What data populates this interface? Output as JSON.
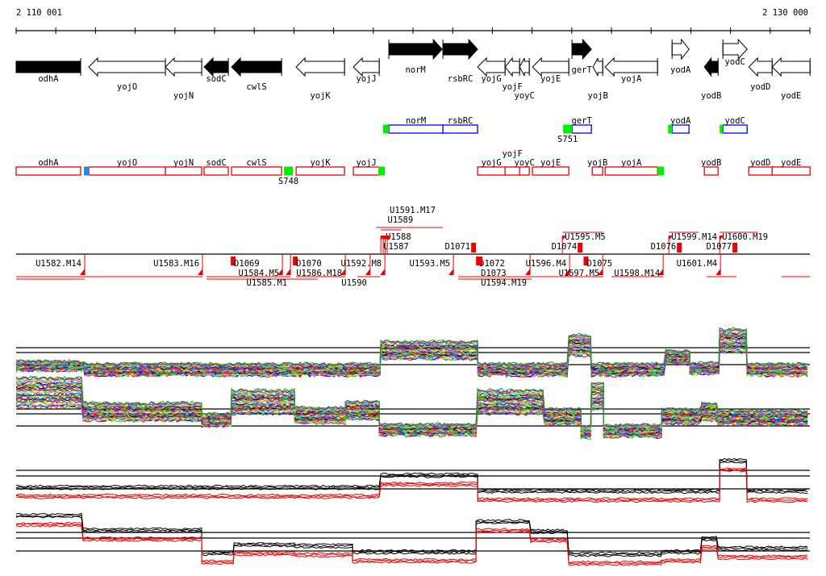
{
  "ruler": {
    "start_label": "2 110 001",
    "end_label": "2 130 000",
    "start": 2110001,
    "end": 2130000,
    "tick_count": 20
  },
  "genes": [
    {
      "name": "odhA",
      "start": 0,
      "end": 1626,
      "strand": "-",
      "style": "filled-box"
    },
    {
      "name": "yojO",
      "start": 1830,
      "end": 3761,
      "strand": "-",
      "style": "open"
    },
    {
      "name": "yojN",
      "start": 3761,
      "end": 4676,
      "strand": "-",
      "style": "open"
    },
    {
      "name": "sodC",
      "start": 4737,
      "end": 5347,
      "strand": "-",
      "style": "filled"
    },
    {
      "name": "cwlS",
      "start": 5428,
      "end": 6689,
      "strand": "-",
      "style": "filled"
    },
    {
      "name": "yojK",
      "start": 7055,
      "end": 8275,
      "strand": "-",
      "style": "open"
    },
    {
      "name": "yojJ",
      "start": 8498,
      "end": 9149,
      "strand": "-",
      "style": "open"
    },
    {
      "name": "norM",
      "start": 9392,
      "end": 10734,
      "strand": "+",
      "style": "filled"
    },
    {
      "name": "rsbRC",
      "start": 10754,
      "end": 11628,
      "strand": "+",
      "style": "filled"
    },
    {
      "name": "yojG",
      "start": 11628,
      "end": 12320,
      "strand": "-",
      "style": "open"
    },
    {
      "name": "yojF",
      "start": 12320,
      "end": 12686,
      "strand": "-",
      "style": "open"
    },
    {
      "name": "yoyC",
      "start": 12686,
      "end": 12930,
      "strand": "-",
      "style": "open"
    },
    {
      "name": "yojE",
      "start": 13011,
      "end": 13926,
      "strand": "-",
      "style": "open"
    },
    {
      "name": "gerT",
      "start": 14007,
      "end": 14495,
      "strand": "+",
      "style": "filled"
    },
    {
      "name": "yojB",
      "start": 14536,
      "end": 14780,
      "strand": "-",
      "style": "open"
    },
    {
      "name": "yojA",
      "start": 14841,
      "end": 16162,
      "strand": "-",
      "style": "open"
    },
    {
      "name": "yodA",
      "start": 16528,
      "end": 16955,
      "strand": "+",
      "style": "open"
    },
    {
      "name": "yodB",
      "start": 17341,
      "end": 17687,
      "strand": "-",
      "style": "filled"
    },
    {
      "name": "yodC",
      "start": 17809,
      "end": 18419,
      "strand": "+",
      "style": "open"
    },
    {
      "name": "yodD",
      "start": 18460,
      "end": 19049,
      "strand": "-",
      "style": "open"
    },
    {
      "name": "yodE",
      "start": 19049,
      "end": 20004,
      "strand": "-",
      "style": "open"
    }
  ],
  "forward_transcripts": {
    "boxes": [
      {
        "name": "norM",
        "start": 9392,
        "end": 10754
      },
      {
        "name": "rsbRC",
        "start": 10754,
        "end": 11628
      },
      {
        "name": "gerT",
        "start": 14007,
        "end": 14495
      },
      {
        "name": "yodA",
        "start": 16528,
        "end": 16955
      },
      {
        "name": "yodC",
        "start": 17809,
        "end": 18419
      }
    ],
    "markers": [
      {
        "start": 9250,
        "end": 9392,
        "color": "#00ee00"
      },
      {
        "start": 13784,
        "end": 14007,
        "color": "#00ee00",
        "label": "S751"
      },
      {
        "start": 16426,
        "end": 16528,
        "color": "#00ee00"
      },
      {
        "start": 17728,
        "end": 17809,
        "color": "#00ee00"
      }
    ],
    "box_color": "#0000ee"
  },
  "reverse_transcripts": {
    "boxes": [
      {
        "name": "odhA",
        "start": 0,
        "end": 1626
      },
      {
        "name": "yojO",
        "start": 1830,
        "end": 3761
      },
      {
        "name": "yojN",
        "start": 3761,
        "end": 4676
      },
      {
        "name": "sodC",
        "start": 4737,
        "end": 5347
      },
      {
        "name": "cwlS",
        "start": 5428,
        "end": 6689
      },
      {
        "name": "yojK",
        "start": 7055,
        "end": 8275
      },
      {
        "name": "yojJ",
        "start": 8498,
        "end": 9149
      },
      {
        "name": "yojG",
        "start": 11628,
        "end": 12320
      },
      {
        "name": "yojF",
        "start": 12320,
        "end": 12686
      },
      {
        "name": "yoyC",
        "start": 12686,
        "end": 12930
      },
      {
        "name": "yojE",
        "start": 13011,
        "end": 13926
      },
      {
        "name": "yojB",
        "start": 14516,
        "end": 14780
      },
      {
        "name": "yojA",
        "start": 14841,
        "end": 16162
      },
      {
        "name": "yodB",
        "start": 17341,
        "end": 17687
      },
      {
        "name": "yodD",
        "start": 18460,
        "end": 19049
      },
      {
        "name": "yodE",
        "start": 19049,
        "end": 20004
      }
    ],
    "markers": [
      {
        "start": 1708,
        "end": 1830,
        "color": "#1090ee"
      },
      {
        "start": 6750,
        "end": 6974,
        "color": "#00ee00",
        "label": "S748"
      },
      {
        "start": 9129,
        "end": 9291,
        "color": "#00ee00"
      },
      {
        "start": 16162,
        "end": 16325,
        "color": "#00ee00"
      }
    ],
    "box_color": "#ee0000"
  },
  "features_below": [
    {
      "label": "U1582.M14",
      "pos": 1728
    },
    {
      "label": "U1583.M16",
      "pos": 4696
    },
    {
      "label": "U1584.M5",
      "pos": 6710
    },
    {
      "label": "U1585.M1",
      "pos": 6913
    },
    {
      "label": "U1586.M18",
      "pos": 8295
    },
    {
      "label": "U1590",
      "pos": 8920
    },
    {
      "label": "U1592.M8",
      "pos": 9291
    },
    {
      "label": "U1593.M5",
      "pos": 11019
    },
    {
      "label": "U1594.M19",
      "pos": 12950
    },
    {
      "label": "U1596.M4",
      "pos": 13946
    },
    {
      "label": "U1597.M5",
      "pos": 14780
    },
    {
      "label": "U1598.M14",
      "pos": 16304
    },
    {
      "label": "U1601.M4",
      "pos": 17748
    }
  ],
  "features_above": [
    {
      "label": "U1587",
      "pos": 9190
    },
    {
      "label": "U1588",
      "pos": 9250
    },
    {
      "label": "U1589",
      "pos": 9300
    },
    {
      "label": "U1591.M17",
      "pos": 9350
    },
    {
      "label": "U1595.M5",
      "pos": 13763
    },
    {
      "label": "U1599.M14",
      "pos": 16447
    },
    {
      "label": "U1600.M19",
      "pos": 17728
    }
  ],
  "d_features": [
    {
      "label": "D1069",
      "pos": 5489,
      "side": "below"
    },
    {
      "label": "D1070",
      "pos": 7055,
      "side": "below"
    },
    {
      "label": "D1071",
      "pos": 11466,
      "side": "above"
    },
    {
      "label": "D1072",
      "pos": 11670,
      "side": "below"
    },
    {
      "label": "D1073",
      "pos": 11710,
      "side": "below"
    },
    {
      "label": "D1074",
      "pos": 14150,
      "side": "above"
    },
    {
      "label": "D1075",
      "pos": 14380,
      "side": "below"
    },
    {
      "label": "D1076",
      "pos": 16650,
      "side": "above"
    },
    {
      "label": "D1077",
      "pos": 18050,
      "side": "above"
    }
  ],
  "profiles": [
    {
      "name": "panel-1",
      "lines": "multi",
      "segments": [
        [
          0,
          1728,
          -0.1
        ],
        [
          1728,
          9189,
          -0.4
        ],
        [
          9189,
          11629,
          1.2
        ],
        [
          11629,
          13926,
          -0.4
        ],
        [
          13926,
          14495,
          1.6
        ],
        [
          14495,
          16366,
          -0.4
        ],
        [
          16366,
          16976,
          0.6
        ],
        [
          16976,
          17728,
          -0.3
        ],
        [
          17728,
          18419,
          2.0
        ],
        [
          18419,
          20004,
          -0.4
        ]
      ]
    },
    {
      "name": "panel-2",
      "lines": "multi",
      "segments": [
        [
          0,
          1687,
          2.8
        ],
        [
          1687,
          4676,
          1.2
        ],
        [
          4676,
          5428,
          0.5
        ],
        [
          5428,
          7014,
          2.0
        ],
        [
          7014,
          8295,
          0.9
        ],
        [
          8295,
          9149,
          1.3
        ],
        [
          9149,
          11629,
          -0.3
        ],
        [
          11629,
          13316,
          2.0
        ],
        [
          13316,
          14231,
          0.8
        ],
        [
          14231,
          14495,
          -0.5
        ],
        [
          14495,
          14800,
          2.5
        ],
        [
          14800,
          16264,
          -0.4
        ],
        [
          16264,
          17281,
          0.8
        ],
        [
          17281,
          17687,
          1.2
        ],
        [
          17687,
          20004,
          0.7
        ]
      ]
    },
    {
      "name": "panel-3",
      "lines": "pair",
      "segments": [
        [
          0,
          9189,
          0.0
        ],
        [
          9189,
          11629,
          1.0
        ],
        [
          11629,
          17728,
          -0.3
        ],
        [
          17728,
          18419,
          2.2
        ],
        [
          18419,
          20004,
          -0.3
        ]
      ]
    },
    {
      "name": "panel-4",
      "lines": "pair",
      "segments": [
        [
          0,
          1687,
          2.8
        ],
        [
          1687,
          4676,
          1.6
        ],
        [
          4676,
          5489,
          -0.3
        ],
        [
          5489,
          7014,
          0.4
        ],
        [
          7014,
          8478,
          0.3
        ],
        [
          8478,
          11588,
          -0.2
        ],
        [
          11588,
          12971,
          2.3
        ],
        [
          12971,
          13926,
          1.5
        ],
        [
          13926,
          16264,
          -0.4
        ],
        [
          16264,
          17281,
          -0.2
        ],
        [
          17281,
          17687,
          0.9
        ],
        [
          17687,
          20004,
          0.1
        ]
      ]
    }
  ],
  "colors": {
    "accent_red": "#ee0000",
    "forward_blue": "#0000ee",
    "marker_green": "#00ee00"
  }
}
